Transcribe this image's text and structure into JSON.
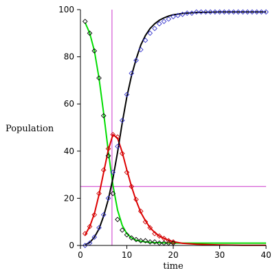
{
  "chart_data": {
    "type": "line",
    "title": "",
    "xlabel": "time",
    "ylabel": "Population",
    "xlim": [
      0,
      40
    ],
    "ylim": [
      0,
      100
    ],
    "x_ticks": [
      0,
      10,
      20,
      30,
      40
    ],
    "y_ticks": [
      0,
      20,
      40,
      60,
      80,
      100
    ],
    "grid": false,
    "legend": "none",
    "reference_lines": [
      {
        "orientation": "vertical",
        "x": 6.8,
        "color": "#cc33cc"
      },
      {
        "orientation": "horizontal",
        "y": 25,
        "color": "#cc33cc"
      }
    ],
    "series": [
      {
        "color": "#00dd00",
        "style": "line",
        "x": [
          1,
          2,
          3,
          4,
          5,
          6,
          7,
          8,
          9,
          10,
          11,
          12,
          13,
          14,
          15,
          16,
          18,
          20,
          22,
          25,
          30,
          35,
          40
        ],
        "y": [
          94.5,
          90,
          82.5,
          71,
          56,
          40,
          25.5,
          15,
          8.5,
          5,
          3.2,
          2.2,
          1.8,
          1.5,
          1.3,
          1.2,
          1.1,
          1,
          1,
          1,
          1,
          1,
          1
        ]
      },
      {
        "color": "#dd0000",
        "style": "line",
        "x": [
          1,
          2,
          3,
          4,
          5,
          6,
          7,
          8,
          9,
          10,
          11,
          12,
          13,
          14,
          15,
          16,
          17,
          18,
          19,
          20,
          22,
          25,
          30,
          35,
          40
        ],
        "y": [
          4.5,
          8,
          13.5,
          21.5,
          31,
          40.5,
          47,
          45.5,
          39.5,
          32,
          25,
          19,
          14,
          10.5,
          7.5,
          5.5,
          4,
          3,
          2.2,
          1.6,
          0.9,
          0.5,
          0.2,
          0.1,
          0.05
        ]
      },
      {
        "color": "#000000",
        "style": "line",
        "x": [
          1,
          2,
          3,
          4,
          5,
          6,
          7,
          8,
          9,
          10,
          11,
          12,
          13,
          14,
          15,
          16,
          17,
          18,
          19,
          20,
          22,
          25,
          30,
          35,
          40
        ],
        "y": [
          0.3,
          1.2,
          3.5,
          7,
          12.5,
          19.5,
          28.5,
          39.5,
          52,
          63,
          72,
          79,
          85,
          89,
          92,
          94,
          95.5,
          96.5,
          97.3,
          97.8,
          98.4,
          98.8,
          99,
          99,
          99
        ]
      },
      {
        "color": "#000000",
        "style": "markers",
        "x": [
          1,
          2,
          3,
          4,
          5,
          6,
          7,
          8,
          9,
          10,
          11,
          12,
          13,
          14,
          15,
          16,
          17,
          18,
          19,
          20
        ],
        "y": [
          95,
          90,
          82.5,
          71,
          55,
          38,
          22,
          11,
          6.5,
          4.5,
          3.2,
          2.5,
          2,
          2,
          1.5,
          1.5,
          1,
          1,
          1,
          1
        ]
      },
      {
        "color": "#cc0000",
        "style": "markers",
        "x": [
          1,
          2,
          3,
          4,
          5,
          6,
          7,
          8,
          9,
          10,
          11,
          12,
          13,
          14,
          15,
          16,
          17,
          18,
          19,
          20
        ],
        "y": [
          5,
          8,
          13,
          22,
          32,
          41,
          47,
          46,
          39,
          31,
          25,
          19.5,
          14.5,
          10,
          7.5,
          5,
          4,
          3,
          2,
          1.5
        ]
      },
      {
        "color": "#3333cc",
        "style": "markers",
        "x": [
          1,
          2,
          3,
          4,
          5,
          6,
          7,
          8,
          9,
          10,
          11,
          12,
          13,
          14,
          15,
          16,
          17,
          18,
          19,
          20,
          21,
          22,
          23,
          24,
          25,
          26,
          27,
          28,
          29,
          30,
          31,
          32,
          33,
          34,
          35,
          36,
          37,
          38,
          39,
          40
        ],
        "y": [
          0,
          1,
          3.5,
          7.5,
          13,
          20,
          31,
          42,
          53,
          64,
          73,
          78.5,
          83,
          87,
          90,
          92,
          94,
          95,
          96,
          97,
          97.5,
          98,
          98.5,
          98.5,
          99,
          99,
          99,
          99,
          99,
          99,
          99,
          99,
          99,
          99,
          99,
          99,
          99,
          99,
          99,
          99
        ]
      }
    ]
  }
}
